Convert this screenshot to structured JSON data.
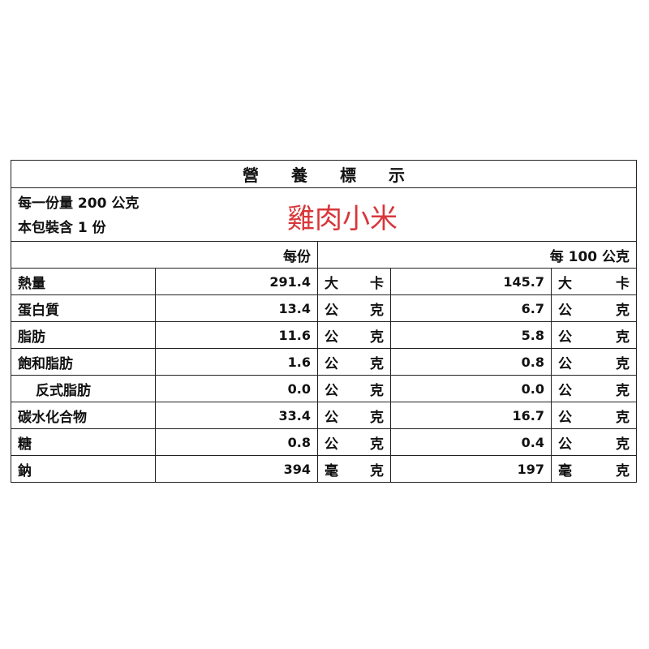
{
  "title_chars": [
    "營",
    "養",
    "標",
    "示"
  ],
  "serving_size": "每一份量 200 公克",
  "servings_per_package": "本包裝含 1 份",
  "product_name": "雞肉小米",
  "header": {
    "per_serving": "每份",
    "per_100g": "每 100 公克"
  },
  "rows": [
    {
      "name": "熱量",
      "serving": "291.4",
      "unit": [
        "大",
        "卡"
      ],
      "per100": "145.7",
      "unit100": [
        "大",
        "卡"
      ]
    },
    {
      "name": "蛋白質",
      "serving": "13.4",
      "unit": [
        "公",
        "克"
      ],
      "per100": "6.7",
      "unit100": [
        "公",
        "克"
      ]
    },
    {
      "name": "脂肪",
      "serving": "11.6",
      "unit": [
        "公",
        "克"
      ],
      "per100": "5.8",
      "unit100": [
        "公",
        "克"
      ]
    },
    {
      "name": "飽和脂肪",
      "serving": "1.6",
      "unit": [
        "公",
        "克"
      ],
      "per100": "0.8",
      "unit100": [
        "公",
        "克"
      ]
    },
    {
      "name": "反式脂肪",
      "serving": "0.0",
      "unit": [
        "公",
        "克"
      ],
      "per100": "0.0",
      "unit100": [
        "公",
        "克"
      ]
    },
    {
      "name": "碳水化合物",
      "serving": "33.4",
      "unit": [
        "公",
        "克"
      ],
      "per100": "16.7",
      "unit100": [
        "公",
        "克"
      ]
    },
    {
      "name": "糖",
      "serving": "0.8",
      "unit": [
        "公",
        "克"
      ],
      "per100": "0.4",
      "unit100": [
        "公",
        "克"
      ]
    },
    {
      "name": "鈉",
      "serving": "394",
      "unit": [
        "毫",
        "克"
      ],
      "per100": "197",
      "unit100": [
        "毫",
        "克"
      ]
    }
  ],
  "colors": {
    "product_name": "#d9363a",
    "border": "#222222"
  }
}
